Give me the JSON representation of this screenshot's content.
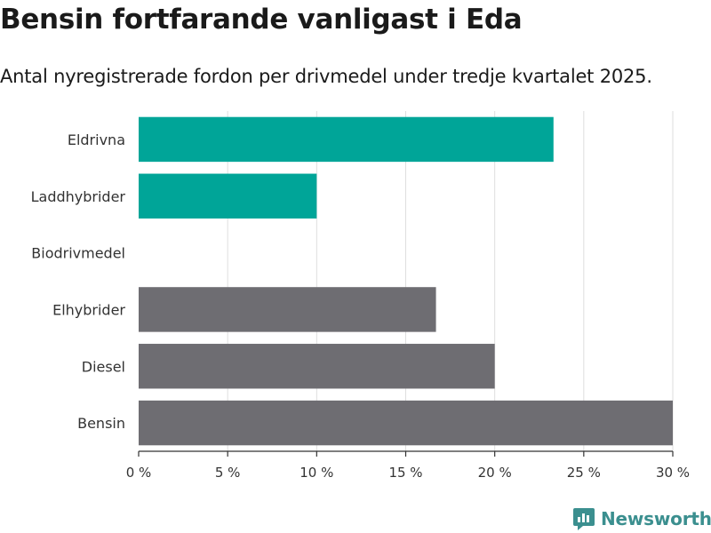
{
  "title": "Bensin fortfarande vanligast i Eda",
  "subtitle": "Antal nyregistrerade fordon per drivmedel under tredje kvartalet 2025.",
  "chart_data": {
    "type": "bar",
    "orientation": "horizontal",
    "categories": [
      "Eldrivna",
      "Laddhybrider",
      "Biodrivmedel",
      "Elhybrider",
      "Diesel",
      "Bensin"
    ],
    "values": [
      23.3,
      10.0,
      0,
      16.7,
      20.0,
      30.0
    ],
    "colors": [
      "#00a598",
      "#00a598",
      "#00a598",
      "#6e6d72",
      "#6e6d72",
      "#6e6d72"
    ],
    "xlim": [
      0,
      30
    ],
    "xticks": [
      0,
      5,
      10,
      15,
      20,
      25,
      30
    ],
    "xtick_labels": [
      "0 %",
      "5 %",
      "10 %",
      "15 %",
      "20 %",
      "25 %",
      "30 %"
    ],
    "grid": true,
    "xlabel": "",
    "ylabel": ""
  },
  "logo": {
    "text": "Newsworthy",
    "color": "#3b8f8f"
  }
}
